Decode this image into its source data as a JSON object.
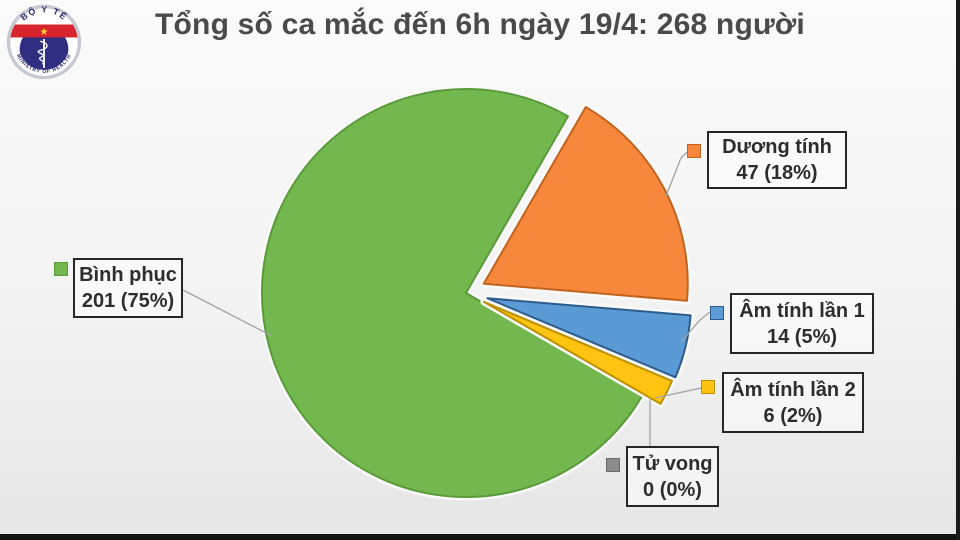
{
  "header": {
    "title": "Tổng số ca mắc đến 6h ngày 19/4: 268 người",
    "logo": {
      "top_text": "BỘ Y TẾ",
      "bottom_text": "MINISTRY OF HEALTH",
      "colors": {
        "ring": "#c6c9d2",
        "band_red": "#d8242c",
        "disc_navy": "#302e80",
        "star_yellow": "#ffd23b",
        "text_navy": "#2b2a70"
      }
    }
  },
  "chart_data": {
    "type": "pie",
    "title": "Tổng số ca mắc đến 6h ngày 19/4: 268 người",
    "total": 268,
    "unit": "người",
    "date_label": "6h ngày 19/4",
    "start_angle_deg": 30,
    "direction": "clockwise",
    "legend_position": "around",
    "slices": [
      {
        "key": "duong-tinh",
        "label": "Dương tính",
        "value": 47,
        "pct": 18,
        "value_text": "47 (18%)",
        "color": "#F6873B",
        "border": "#C1641F",
        "explode": 20
      },
      {
        "key": "am-tinh-lan-1",
        "label": "Âm tính lần 1",
        "value": 14,
        "pct": 5,
        "value_text": "14 (5%)",
        "color": "#5B9BD5",
        "border": "#2E5C8A",
        "explode": 22
      },
      {
        "key": "am-tinh-lan-2",
        "label": "Âm tính lần 2",
        "value": 6,
        "pct": 2,
        "value_text": "6 (2%)",
        "color": "#FFC412",
        "border": "#BC9000",
        "explode": 20
      },
      {
        "key": "tu-vong",
        "label": "Tử vong",
        "value": 0,
        "pct": 0,
        "value_text": "0 (0%)",
        "color": "#8C8C8C",
        "border": "#6B6B6B",
        "explode": 0
      },
      {
        "key": "binh-phuc",
        "label": "Bình phục",
        "value": 201,
        "pct": 75,
        "value_text": "201 (75%)",
        "color": "#73B84E",
        "border": "#5B9A3B",
        "explode": 0
      }
    ]
  }
}
